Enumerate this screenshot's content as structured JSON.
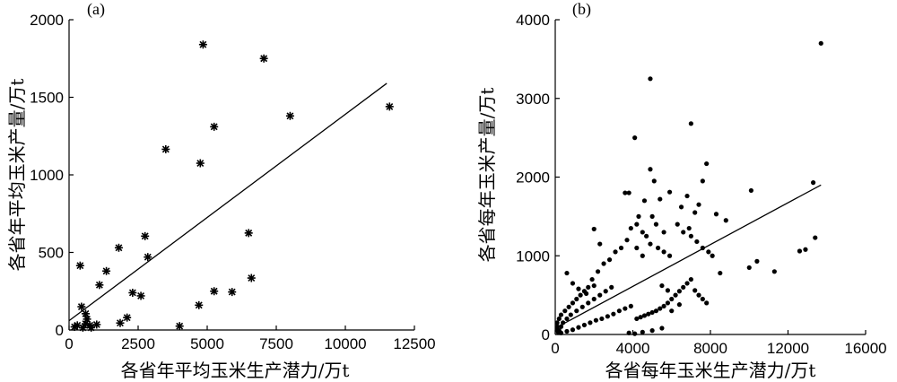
{
  "chart_data": [
    {
      "type": "scatter",
      "panel_label": "(a)",
      "xlabel": "各省年平均玉米生产潜力/万t",
      "ylabel": "各省年平均玉米产量/万t",
      "xlim": [
        0,
        12500
      ],
      "ylim": [
        0,
        2000
      ],
      "xticks": [
        0,
        2500,
        5000,
        7500,
        10000,
        12500
      ],
      "yticks": [
        0,
        500,
        1000,
        1500,
        2000
      ],
      "marker": "star-with-error-bars",
      "series": [
        {
          "points": [
            [
              4850,
              1840
            ],
            [
              7050,
              1750
            ],
            [
              8000,
              1380
            ],
            [
              11600,
              1440
            ],
            [
              5250,
              1310
            ],
            [
              3500,
              1165
            ],
            [
              4750,
              1075
            ],
            [
              6500,
              625
            ],
            [
              2750,
              605
            ],
            [
              1800,
              530
            ],
            [
              400,
              415
            ],
            [
              2850,
              470
            ],
            [
              1350,
              380
            ],
            [
              1100,
              290
            ],
            [
              6600,
              335
            ],
            [
              5250,
              250
            ],
            [
              5900,
              245
            ],
            [
              2300,
              240
            ],
            [
              2600,
              220
            ],
            [
              4700,
              160
            ],
            [
              2100,
              80
            ],
            [
              1850,
              45
            ],
            [
              4000,
              25
            ],
            [
              450,
              150
            ],
            [
              600,
              105
            ],
            [
              650,
              70
            ],
            [
              600,
              40
            ],
            [
              750,
              30
            ],
            [
              1000,
              35
            ],
            [
              300,
              30
            ],
            [
              200,
              20
            ],
            [
              500,
              15
            ],
            [
              800,
              15
            ]
          ]
        }
      ],
      "fit_line": {
        "x": [
          0,
          11500
        ],
        "y": [
          60,
          1590
        ]
      }
    },
    {
      "type": "scatter",
      "panel_label": "(b)",
      "xlabel": "各省每年玉米生产潜力/万t",
      "ylabel": "各省每年玉米产量/万t",
      "xlim": [
        0,
        16000
      ],
      "ylim": [
        0,
        4000
      ],
      "xticks": [
        0,
        4000,
        8000,
        12000,
        16000
      ],
      "yticks": [
        0,
        1000,
        2000,
        3000,
        4000
      ],
      "marker": "dot",
      "series": [
        {
          "points": [
            [
              13700,
              3700
            ],
            [
              4900,
              3250
            ],
            [
              7000,
              2680
            ],
            [
              4100,
              2500
            ],
            [
              13300,
              1930
            ],
            [
              13400,
              1230
            ],
            [
              12600,
              1060
            ],
            [
              12900,
              1080
            ],
            [
              11300,
              800
            ],
            [
              10100,
              1830
            ],
            [
              10400,
              930
            ],
            [
              10000,
              850
            ],
            [
              8800,
              1450
            ],
            [
              8300,
              1530
            ],
            [
              8500,
              780
            ],
            [
              7800,
              2170
            ],
            [
              7600,
              1950
            ],
            [
              7200,
              1550
            ],
            [
              6800,
              1760
            ],
            [
              6500,
              1620
            ],
            [
              5900,
              1810
            ],
            [
              5400,
              1720
            ],
            [
              5100,
              1950
            ],
            [
              4900,
              2100
            ],
            [
              4600,
              1700
            ],
            [
              4300,
              1500
            ],
            [
              3900,
              1350
            ],
            [
              3700,
              1200
            ],
            [
              3400,
              1100
            ],
            [
              3100,
              1050
            ],
            [
              2800,
              950
            ],
            [
              2500,
              900
            ],
            [
              2200,
              800
            ],
            [
              1900,
              700
            ],
            [
              1700,
              600
            ],
            [
              1500,
              550
            ],
            [
              1300,
              500
            ],
            [
              1100,
              450
            ],
            [
              900,
              400
            ],
            [
              700,
              350
            ],
            [
              500,
              300
            ],
            [
              300,
              250
            ],
            [
              200,
              200
            ],
            [
              100,
              150
            ],
            [
              100,
              100
            ],
            [
              100,
              60
            ],
            [
              150,
              30
            ],
            [
              300,
              20
            ],
            [
              600,
              40
            ],
            [
              900,
              60
            ],
            [
              1200,
              90
            ],
            [
              1500,
              120
            ],
            [
              1800,
              150
            ],
            [
              2100,
              180
            ],
            [
              2400,
              200
            ],
            [
              2700,
              230
            ],
            [
              3000,
              260
            ],
            [
              3300,
              300
            ],
            [
              3600,
              330
            ],
            [
              3900,
              360
            ],
            [
              4200,
              200
            ],
            [
              4400,
              220
            ],
            [
              4600,
              240
            ],
            [
              4800,
              260
            ],
            [
              5000,
              280
            ],
            [
              5200,
              300
            ],
            [
              5400,
              330
            ],
            [
              5600,
              360
            ],
            [
              5800,
              400
            ],
            [
              6000,
              450
            ],
            [
              6200,
              500
            ],
            [
              6400,
              550
            ],
            [
              6600,
              600
            ],
            [
              6800,
              650
            ],
            [
              7000,
              700
            ],
            [
              7200,
              560
            ],
            [
              7400,
              500
            ],
            [
              7600,
              450
            ],
            [
              7800,
              400
            ],
            [
              6000,
              300
            ],
            [
              6400,
              380
            ],
            [
              5800,
              560
            ],
            [
              5500,
              620
            ],
            [
              2900,
              600
            ],
            [
              2600,
              550
            ],
            [
              2300,
              500
            ],
            [
              2000,
              450
            ],
            [
              1700,
              400
            ],
            [
              1400,
              350
            ],
            [
              1100,
              300
            ],
            [
              800,
              250
            ],
            [
              600,
              200
            ],
            [
              400,
              150
            ],
            [
              300,
              100
            ],
            [
              200,
              50
            ],
            [
              3800,
              20
            ],
            [
              4100,
              10
            ],
            [
              4500,
              30
            ],
            [
              5000,
              50
            ],
            [
              5500,
              80
            ],
            [
              600,
              780
            ],
            [
              900,
              650
            ],
            [
              1200,
              580
            ],
            [
              1600,
              520
            ],
            [
              2000,
              1340
            ],
            [
              2300,
              1150
            ],
            [
              2000,
              620
            ],
            [
              3600,
              1800
            ],
            [
              3800,
              1800
            ],
            [
              4200,
              1400
            ],
            [
              4500,
              1300
            ],
            [
              4700,
              1250
            ],
            [
              4900,
              1150
            ],
            [
              5300,
              1100
            ],
            [
              5600,
              1050
            ],
            [
              5900,
              1000
            ],
            [
              6300,
              1400
            ],
            [
              6600,
              1300
            ],
            [
              7000,
              1250
            ],
            [
              7300,
              1180
            ],
            [
              7600,
              1100
            ],
            [
              7900,
              1050
            ],
            [
              8100,
              1000
            ],
            [
              4200,
              1100
            ],
            [
              4500,
              1000
            ],
            [
              5000,
              1500
            ],
            [
              5200,
              1400
            ],
            [
              5600,
              1300
            ],
            [
              6900,
              1350
            ],
            [
              7400,
              1650
            ]
          ]
        }
      ],
      "fit_line": {
        "x": [
          0,
          13700
        ],
        "y": [
          80,
          1900
        ]
      }
    }
  ]
}
